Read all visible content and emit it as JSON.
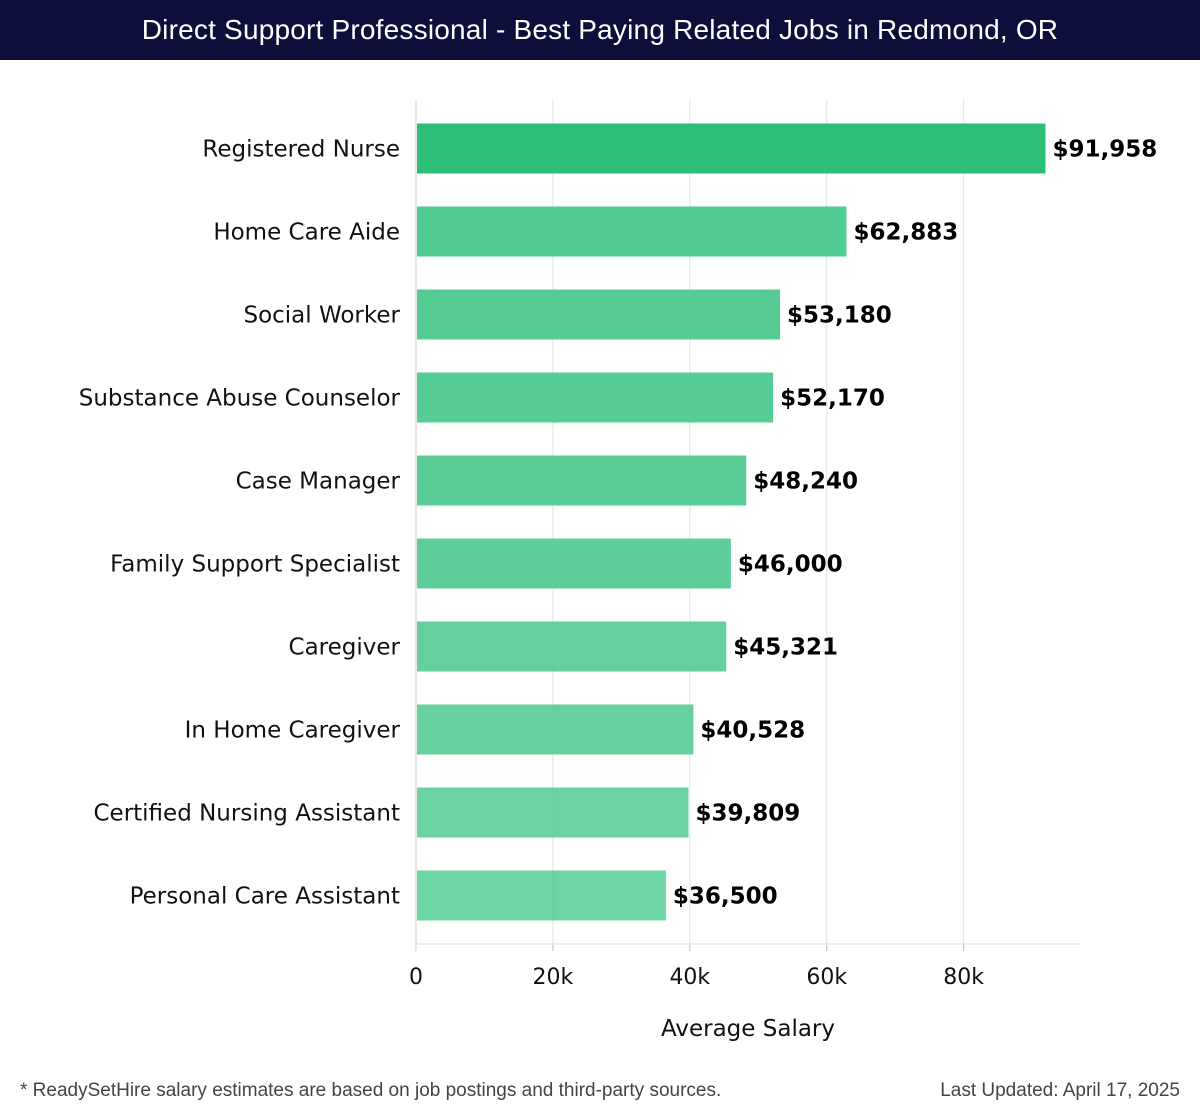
{
  "header": {
    "title": "Direct Support Professional - Best Paying Related Jobs in Redmond, OR"
  },
  "chart_data": {
    "type": "bar",
    "orientation": "horizontal",
    "categories": [
      "Registered Nurse",
      "Home Care Aide",
      "Social Worker",
      "Substance Abuse Counselor",
      "Case Manager",
      "Family Support Specialist",
      "Caregiver",
      "In Home Caregiver",
      "Certified Nursing Assistant",
      "Personal Care Assistant"
    ],
    "values": [
      91958,
      62883,
      53180,
      52170,
      48240,
      46000,
      45321,
      40528,
      39809,
      36500
    ],
    "data_labels": [
      "$91,958",
      "$62,883",
      "$53,180",
      "$52,170",
      "$48,240",
      "$46,000",
      "$45,321",
      "$40,528",
      "$39,809",
      "$36,500"
    ],
    "xlabel": "Average Salary",
    "ylabel": "",
    "xlim": [
      0,
      97000
    ],
    "xticks": [
      0,
      20000,
      40000,
      60000,
      80000
    ],
    "xtick_labels": [
      "0",
      "20k",
      "40k",
      "60k",
      "80k"
    ],
    "grid": true,
    "colors": {
      "top_bar": "#2bbf77",
      "bar": "#4dca8f"
    }
  },
  "footer": {
    "note": "* ReadySetHire salary estimates are based on job postings and third-party sources.",
    "updated": "Last Updated: April 17, 2025"
  }
}
